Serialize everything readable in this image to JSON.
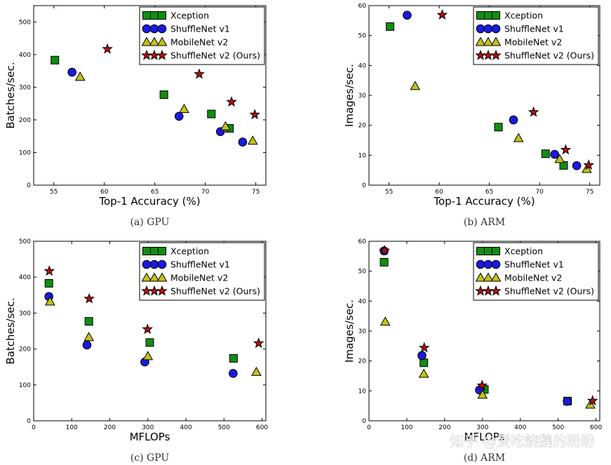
{
  "figure": {
    "watermark": "知乎 @爱吃烧鹅的盼盼",
    "legend_series": [
      "Xception",
      "ShuffleNet v1",
      "MobileNet v2",
      "ShuffleNet v2 (Ours)"
    ],
    "colors": {
      "Xception": "#118d11",
      "ShuffleNet v1": "#1a1adf",
      "MobileNet v2": "#c2c21a",
      "ShuffleNet v2 (Ours)": "#b01010"
    }
  },
  "chart_data": [
    {
      "type": "scatter",
      "caption": "(a) GPU",
      "xlabel": "Top-1 Accuracy (%)",
      "ylabel": "Batches/sec.",
      "xlim": [
        53,
        76
      ],
      "ylim": [
        0,
        550
      ],
      "xticks": [
        55,
        60,
        65,
        70,
        75
      ],
      "yticks": [
        0,
        100,
        200,
        300,
        400,
        500
      ],
      "legend": "top-right",
      "series": [
        {
          "name": "Xception",
          "marker": "square",
          "x": [
            55.1,
            65.9,
            70.6,
            72.4
          ],
          "y": [
            383,
            277,
            218,
            174
          ]
        },
        {
          "name": "ShuffleNet v1",
          "marker": "circle",
          "x": [
            56.8,
            67.4,
            71.5,
            73.7
          ],
          "y": [
            346,
            211,
            164,
            132
          ]
        },
        {
          "name": "MobileNet v2",
          "marker": "triangle",
          "x": [
            57.6,
            67.9,
            72.0,
            74.7
          ],
          "y": [
            332,
            233,
            180,
            136
          ]
        },
        {
          "name": "ShuffleNet v2 (Ours)",
          "marker": "star",
          "x": [
            60.3,
            69.4,
            72.6,
            74.9
          ],
          "y": [
            417,
            340,
            255,
            216
          ]
        }
      ]
    },
    {
      "type": "scatter",
      "caption": "(b) ARM",
      "xlabel": "Top-1 Accuracy (%)",
      "ylabel": "Images/sec.",
      "xlim": [
        53,
        76
      ],
      "ylim": [
        0,
        60
      ],
      "xticks": [
        55,
        60,
        65,
        70,
        75
      ],
      "yticks": [
        0,
        10,
        20,
        30,
        40,
        50,
        60
      ],
      "legend": "top-right",
      "series": [
        {
          "name": "Xception",
          "marker": "square",
          "x": [
            55.1,
            65.9,
            70.6,
            72.4
          ],
          "y": [
            53,
            19.4,
            10.5,
            6.6
          ]
        },
        {
          "name": "ShuffleNet v1",
          "marker": "circle",
          "x": [
            56.8,
            67.4,
            71.5,
            73.7
          ],
          "y": [
            56.8,
            21.8,
            10.3,
            6.5
          ]
        },
        {
          "name": "MobileNet v2",
          "marker": "triangle",
          "x": [
            57.6,
            67.9,
            72.0,
            74.7
          ],
          "y": [
            33.1,
            15.7,
            8.7,
            5.4
          ]
        },
        {
          "name": "ShuffleNet v2 (Ours)",
          "marker": "star",
          "x": [
            60.3,
            69.4,
            72.6,
            74.9
          ],
          "y": [
            56.9,
            24.4,
            11.8,
            6.7
          ]
        }
      ]
    },
    {
      "type": "scatter",
      "caption": "(c) GPU",
      "xlabel": "MFLOPs",
      "ylabel": "Batches/sec.",
      "xlim": [
        0,
        610
      ],
      "ylim": [
        0,
        500
      ],
      "xticks": [
        0,
        100,
        200,
        300,
        400,
        500,
        600
      ],
      "yticks": [
        0,
        100,
        200,
        300,
        400,
        500
      ],
      "legend": "top-right",
      "series": [
        {
          "name": "Xception",
          "marker": "square",
          "x": [
            40,
            145,
            305,
            525
          ],
          "y": [
            383,
            277,
            218,
            174
          ]
        },
        {
          "name": "ShuffleNet v1",
          "marker": "circle",
          "x": [
            40,
            140,
            292,
            524
          ],
          "y": [
            346,
            211,
            164,
            132
          ]
        },
        {
          "name": "MobileNet v2",
          "marker": "triangle",
          "x": [
            43,
            145,
            300,
            585
          ],
          "y": [
            332,
            233,
            180,
            136
          ]
        },
        {
          "name": "ShuffleNet v2 (Ours)",
          "marker": "star",
          "x": [
            41,
            146,
            299,
            591
          ],
          "y": [
            417,
            340,
            255,
            216
          ]
        }
      ]
    },
    {
      "type": "scatter",
      "caption": "(d) ARM",
      "xlabel": "MFLOPs",
      "ylabel": "Images/sec.",
      "xlim": [
        0,
        610
      ],
      "ylim": [
        0,
        60
      ],
      "xticks": [
        0,
        100,
        200,
        300,
        400,
        500,
        600
      ],
      "yticks": [
        0,
        10,
        20,
        30,
        40,
        50,
        60
      ],
      "legend": "top-right",
      "series": [
        {
          "name": "Xception",
          "marker": "square",
          "x": [
            40,
            145,
            305,
            525
          ],
          "y": [
            53,
            19.4,
            10.5,
            6.6
          ]
        },
        {
          "name": "ShuffleNet v1",
          "marker": "circle",
          "x": [
            40,
            140,
            292,
            524
          ],
          "y": [
            56.8,
            21.8,
            10.3,
            6.5
          ]
        },
        {
          "name": "MobileNet v2",
          "marker": "triangle",
          "x": [
            43,
            145,
            300,
            585
          ],
          "y": [
            33.1,
            15.7,
            8.7,
            5.4
          ]
        },
        {
          "name": "ShuffleNet v2 (Ours)",
          "marker": "star",
          "x": [
            41,
            146,
            299,
            591
          ],
          "y": [
            56.9,
            24.4,
            11.8,
            6.7
          ]
        }
      ]
    }
  ]
}
